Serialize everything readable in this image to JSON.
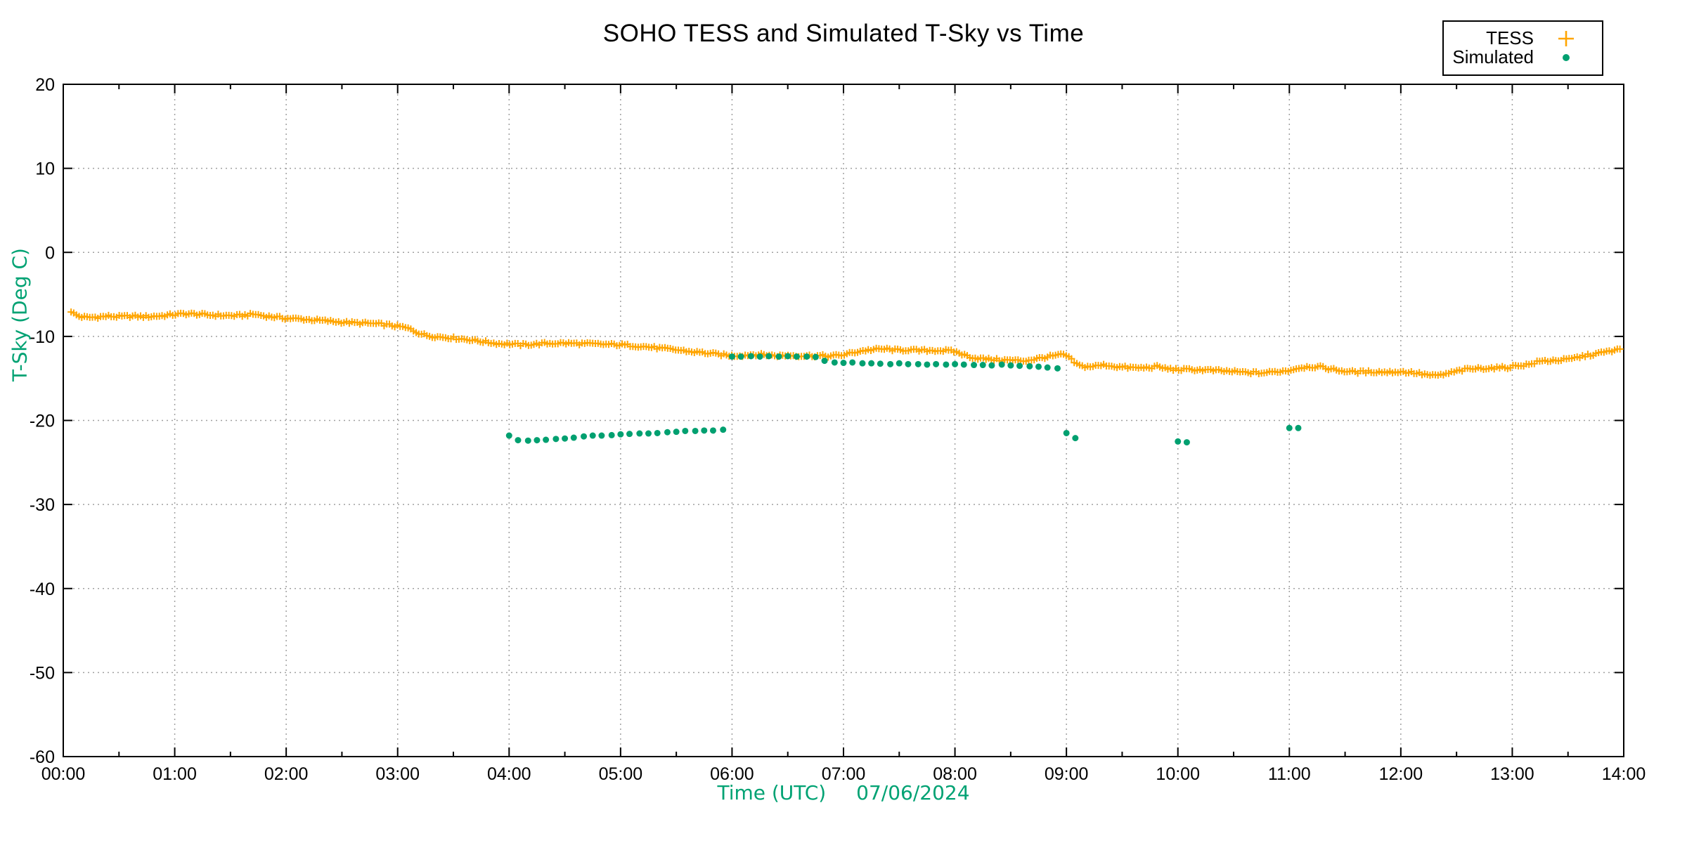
{
  "title": "SOHO TESS and Simulated T-Sky vs Time",
  "legend": {
    "items": [
      {
        "label": "TESS",
        "marker": "plus-icon",
        "color": "#FFA500"
      },
      {
        "label": "Simulated",
        "marker": "dot-icon",
        "color": "#00A070"
      }
    ]
  },
  "x_axis": {
    "label": "Time (UTC)",
    "date": "07/06/2024",
    "ticks": [
      "00:00",
      "01:00",
      "02:00",
      "03:00",
      "04:00",
      "05:00",
      "06:00",
      "07:00",
      "08:00",
      "09:00",
      "10:00",
      "11:00",
      "12:00",
      "13:00",
      "14:00"
    ],
    "range_hours": [
      0,
      14
    ],
    "minor_tick_hours": 0.5,
    "label_color": "#00A273"
  },
  "y_axis": {
    "label": "T-Sky (Deg C)",
    "ticks": [
      20,
      10,
      0,
      -10,
      -20,
      -30,
      -40,
      -50,
      -60
    ],
    "range": [
      -60,
      20
    ],
    "label_color": "#00A273"
  },
  "grid": {
    "visible": true,
    "style": "dotted",
    "color": "#A0A0A0"
  },
  "chart_data": {
    "type": "scatter",
    "title": "SOHO TESS and Simulated T-Sky vs Time",
    "xlabel": "Time (UTC) 07/06/2024",
    "ylabel": "T-Sky (Deg C)",
    "xlim_hours": [
      0,
      14
    ],
    "ylim": [
      -60,
      20
    ],
    "series": [
      {
        "name": "TESS",
        "marker": "plus",
        "color": "#FFA500",
        "points": [
          [
            0.07,
            -7.0
          ],
          [
            0.1,
            -7.35
          ],
          [
            0.15,
            -7.65
          ],
          [
            0.22,
            -7.75
          ],
          [
            0.3,
            -7.7
          ],
          [
            0.4,
            -7.6
          ],
          [
            0.5,
            -7.65
          ],
          [
            0.62,
            -7.6
          ],
          [
            0.75,
            -7.65
          ],
          [
            0.88,
            -7.55
          ],
          [
            1.0,
            -7.4
          ],
          [
            1.1,
            -7.3
          ],
          [
            1.2,
            -7.35
          ],
          [
            1.3,
            -7.45
          ],
          [
            1.42,
            -7.5
          ],
          [
            1.55,
            -7.55
          ],
          [
            1.65,
            -7.45
          ],
          [
            1.72,
            -7.35
          ],
          [
            1.8,
            -7.55
          ],
          [
            1.9,
            -7.7
          ],
          [
            2.0,
            -7.85
          ],
          [
            2.1,
            -7.9
          ],
          [
            2.2,
            -8.0
          ],
          [
            2.3,
            -8.1
          ],
          [
            2.4,
            -8.2
          ],
          [
            2.5,
            -8.3
          ],
          [
            2.62,
            -8.4
          ],
          [
            2.75,
            -8.45
          ],
          [
            2.85,
            -8.55
          ],
          [
            2.95,
            -8.7
          ],
          [
            3.05,
            -8.9
          ],
          [
            3.12,
            -9.15
          ],
          [
            3.18,
            -9.55
          ],
          [
            3.25,
            -9.85
          ],
          [
            3.32,
            -10.0
          ],
          [
            3.42,
            -10.1
          ],
          [
            3.55,
            -10.25
          ],
          [
            3.65,
            -10.4
          ],
          [
            3.78,
            -10.65
          ],
          [
            3.9,
            -10.85
          ],
          [
            4.0,
            -10.9
          ],
          [
            4.1,
            -11.0
          ],
          [
            4.2,
            -10.95
          ],
          [
            4.32,
            -10.85
          ],
          [
            4.45,
            -10.8
          ],
          [
            4.6,
            -10.85
          ],
          [
            4.75,
            -10.9
          ],
          [
            4.88,
            -10.95
          ],
          [
            5.0,
            -11.0
          ],
          [
            5.12,
            -11.1
          ],
          [
            5.25,
            -11.25
          ],
          [
            5.38,
            -11.45
          ],
          [
            5.5,
            -11.6
          ],
          [
            5.62,
            -11.8
          ],
          [
            5.75,
            -11.95
          ],
          [
            5.88,
            -12.15
          ],
          [
            6.0,
            -12.3
          ],
          [
            6.1,
            -12.25
          ],
          [
            6.2,
            -12.15
          ],
          [
            6.3,
            -12.2
          ],
          [
            6.4,
            -12.3
          ],
          [
            6.5,
            -12.25
          ],
          [
            6.62,
            -12.3
          ],
          [
            6.75,
            -12.3
          ],
          [
            6.88,
            -12.35
          ],
          [
            7.0,
            -12.2
          ],
          [
            7.08,
            -11.95
          ],
          [
            7.17,
            -11.7
          ],
          [
            7.28,
            -11.55
          ],
          [
            7.38,
            -11.5
          ],
          [
            7.48,
            -11.65
          ],
          [
            7.58,
            -11.6
          ],
          [
            7.68,
            -11.7
          ],
          [
            7.8,
            -11.65
          ],
          [
            7.92,
            -11.7
          ],
          [
            8.0,
            -11.8
          ],
          [
            8.08,
            -12.2
          ],
          [
            8.17,
            -12.55
          ],
          [
            8.28,
            -12.7
          ],
          [
            8.4,
            -12.8
          ],
          [
            8.52,
            -12.85
          ],
          [
            8.62,
            -12.9
          ],
          [
            8.72,
            -12.7
          ],
          [
            8.82,
            -12.45
          ],
          [
            8.92,
            -12.25
          ],
          [
            8.98,
            -12.15
          ],
          [
            9.03,
            -12.6
          ],
          [
            9.08,
            -13.2
          ],
          [
            9.13,
            -13.55
          ],
          [
            9.2,
            -13.6
          ],
          [
            9.28,
            -13.5
          ],
          [
            9.35,
            -13.4
          ],
          [
            9.45,
            -13.6
          ],
          [
            9.55,
            -13.7
          ],
          [
            9.65,
            -13.75
          ],
          [
            9.75,
            -13.7
          ],
          [
            9.82,
            -13.6
          ],
          [
            9.9,
            -13.85
          ],
          [
            10.0,
            -13.95
          ],
          [
            10.12,
            -13.95
          ],
          [
            10.25,
            -14.0
          ],
          [
            10.38,
            -14.1
          ],
          [
            10.5,
            -14.2
          ],
          [
            10.62,
            -14.3
          ],
          [
            10.75,
            -14.35
          ],
          [
            10.88,
            -14.2
          ],
          [
            11.0,
            -14.05
          ],
          [
            11.08,
            -13.75
          ],
          [
            11.17,
            -13.6
          ],
          [
            11.28,
            -13.65
          ],
          [
            11.38,
            -13.9
          ],
          [
            11.5,
            -14.15
          ],
          [
            11.62,
            -14.25
          ],
          [
            11.75,
            -14.2
          ],
          [
            11.88,
            -14.25
          ],
          [
            12.0,
            -14.2
          ],
          [
            12.1,
            -14.3
          ],
          [
            12.2,
            -14.5
          ],
          [
            12.3,
            -14.7
          ],
          [
            12.4,
            -14.5
          ],
          [
            12.5,
            -14.15
          ],
          [
            12.6,
            -13.9
          ],
          [
            12.72,
            -13.8
          ],
          [
            12.85,
            -13.75
          ],
          [
            12.95,
            -13.7
          ],
          [
            13.05,
            -13.45
          ],
          [
            13.15,
            -13.35
          ],
          [
            13.25,
            -12.95
          ],
          [
            13.38,
            -12.85
          ],
          [
            13.5,
            -12.75
          ],
          [
            13.62,
            -12.4
          ],
          [
            13.72,
            -12.15
          ],
          [
            13.82,
            -11.9
          ],
          [
            13.9,
            -11.7
          ],
          [
            13.97,
            -11.55
          ]
        ]
      },
      {
        "name": "Simulated",
        "marker": "dot",
        "color": "#00A070",
        "points": [
          [
            4.0,
            -21.8
          ],
          [
            4.08,
            -22.35
          ],
          [
            4.17,
            -22.4
          ],
          [
            4.25,
            -22.35
          ],
          [
            4.33,
            -22.3
          ],
          [
            4.42,
            -22.2
          ],
          [
            4.5,
            -22.15
          ],
          [
            4.58,
            -22.05
          ],
          [
            4.67,
            -21.9
          ],
          [
            4.75,
            -21.8
          ],
          [
            4.83,
            -21.8
          ],
          [
            4.92,
            -21.75
          ],
          [
            5.0,
            -21.65
          ],
          [
            5.08,
            -21.6
          ],
          [
            5.17,
            -21.55
          ],
          [
            5.25,
            -21.55
          ],
          [
            5.33,
            -21.5
          ],
          [
            5.42,
            -21.4
          ],
          [
            5.5,
            -21.35
          ],
          [
            5.58,
            -21.25
          ],
          [
            5.67,
            -21.25
          ],
          [
            5.75,
            -21.2
          ],
          [
            5.83,
            -21.2
          ],
          [
            5.92,
            -21.1
          ],
          [
            6.0,
            -12.4
          ],
          [
            6.08,
            -12.4
          ],
          [
            6.17,
            -12.35
          ],
          [
            6.25,
            -12.4
          ],
          [
            6.33,
            -12.35
          ],
          [
            6.42,
            -12.4
          ],
          [
            6.5,
            -12.35
          ],
          [
            6.58,
            -12.4
          ],
          [
            6.67,
            -12.4
          ],
          [
            6.75,
            -12.45
          ],
          [
            6.83,
            -12.9
          ],
          [
            6.92,
            -13.1
          ],
          [
            7.0,
            -13.15
          ],
          [
            7.08,
            -13.1
          ],
          [
            7.17,
            -13.2
          ],
          [
            7.25,
            -13.2
          ],
          [
            7.33,
            -13.25
          ],
          [
            7.42,
            -13.3
          ],
          [
            7.5,
            -13.2
          ],
          [
            7.58,
            -13.3
          ],
          [
            7.67,
            -13.3
          ],
          [
            7.75,
            -13.35
          ],
          [
            7.83,
            -13.3
          ],
          [
            7.92,
            -13.35
          ],
          [
            8.0,
            -13.3
          ],
          [
            8.08,
            -13.35
          ],
          [
            8.17,
            -13.4
          ],
          [
            8.25,
            -13.4
          ],
          [
            8.33,
            -13.45
          ],
          [
            8.42,
            -13.35
          ],
          [
            8.5,
            -13.45
          ],
          [
            8.58,
            -13.5
          ],
          [
            8.67,
            -13.55
          ],
          [
            8.75,
            -13.6
          ],
          [
            8.83,
            -13.7
          ],
          [
            8.92,
            -13.8
          ],
          [
            9.0,
            -21.5
          ],
          [
            9.08,
            -22.1
          ],
          [
            10.0,
            -22.5
          ],
          [
            10.08,
            -22.6
          ],
          [
            11.0,
            -20.9
          ],
          [
            11.08,
            -20.9
          ]
        ]
      }
    ]
  }
}
